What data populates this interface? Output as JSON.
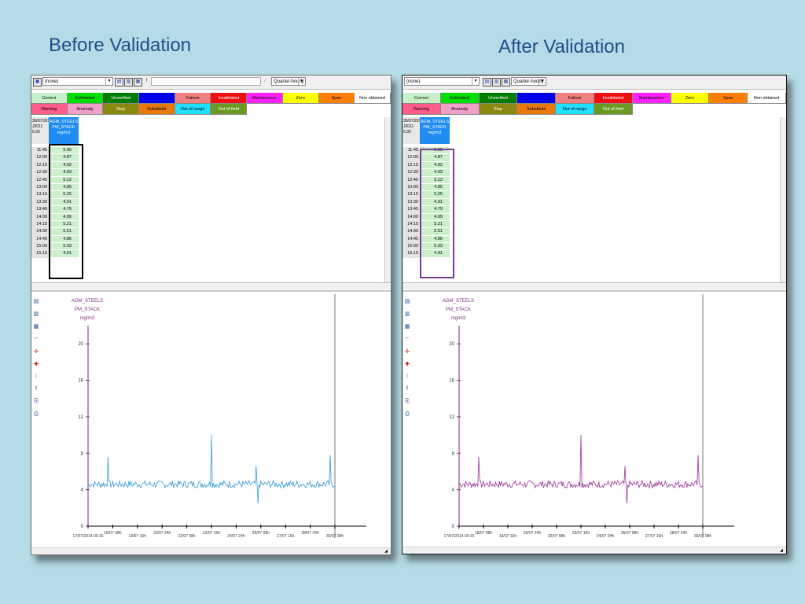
{
  "slide": {
    "title_left": "Before Validation",
    "title_right": "After Validation"
  },
  "window": {
    "station_select": "(none)",
    "period_select": "Quarter-hourly"
  },
  "legend": {
    "row1": [
      {
        "label": "Correct",
        "color": "#c8f0c8"
      },
      {
        "label": "Estimated",
        "color": "#00e000"
      },
      {
        "label": "Unverified",
        "color": "#007c00"
      },
      {
        "label": "",
        "color": "#0000e8"
      },
      {
        "label": "Failure",
        "color": "#f08080"
      },
      {
        "label": "Invalidated",
        "color": "#ee1010"
      },
      {
        "label": "Maintenance",
        "color": "#ff22ff"
      },
      {
        "label": "Zero",
        "color": "#ffff00"
      },
      {
        "label": "Span",
        "color": "#ff8000"
      },
      {
        "label": "Non obtained",
        "color": "#ffffff"
      }
    ],
    "row2": [
      {
        "label": "Warning",
        "color": "#ff5c8a"
      },
      {
        "label": "Anomaly",
        "color": "#f0a0c8"
      },
      {
        "label": "Stop",
        "color": "#8a8a10"
      },
      {
        "label": "Substitute",
        "color": "#e8780a"
      },
      {
        "label": "Out of range",
        "color": "#20e0ff"
      },
      {
        "label": "Out of field",
        "color": "#6a9a22"
      }
    ]
  },
  "grid": {
    "date_header": "30/07/2014 J2011 5:30",
    "column_header": [
      "AGM_STEELS",
      "PM_STACK",
      "mg/m3"
    ],
    "rows": [
      {
        "t": "11:45",
        "v": "5.00"
      },
      {
        "t": "12:00",
        "v": "4.87"
      },
      {
        "t": "12:15",
        "v": "4.92"
      },
      {
        "t": "12:30",
        "v": "4.93"
      },
      {
        "t": "12:45",
        "v": "5.12"
      },
      {
        "t": "13:00",
        "v": "4.85"
      },
      {
        "t": "13:15",
        "v": "5.25"
      },
      {
        "t": "13:30",
        "v": "4.91"
      },
      {
        "t": "13:45",
        "v": "4.79"
      },
      {
        "t": "14:00",
        "v": "4.99"
      },
      {
        "t": "14:15",
        "v": "5.21"
      },
      {
        "t": "14:30",
        "v": "5.51"
      },
      {
        "t": "14:45",
        "v": "4.86"
      },
      {
        "t": "15:00",
        "v": "5.03"
      },
      {
        "t": "15:15",
        "v": "4.91"
      }
    ]
  },
  "chart_data": [
    {
      "type": "line",
      "panel": "Before Validation",
      "title": "AGM_STEELS PM_STACK mg/m3",
      "series_color": "#3399dd",
      "ylim": [
        0,
        22
      ],
      "yticks": [
        "0",
        "4",
        "8",
        "12",
        "16",
        "20"
      ],
      "xticks": [
        "17/07/2014 00:15",
        "18/07 08h",
        "19/07 16h",
        "20/07 24h",
        "22/07 08h",
        "23/07 16h",
        "24/07 24h",
        "26/07 08h",
        "27/07 16h",
        "28/07 24h",
        "30/07 08h"
      ],
      "baseline": 4.6,
      "spikes": [
        {
          "x": 0.8,
          "y": 7.6
        },
        {
          "x": 5.0,
          "y": 10.0
        },
        {
          "x": 6.8,
          "y": 6.6
        },
        {
          "x": 6.9,
          "y": 2.5
        },
        {
          "x": 9.8,
          "y": 7.8
        }
      ]
    },
    {
      "type": "line",
      "panel": "After Validation",
      "title": "AGM_STEELS PM_STACK mg/m3",
      "series_color": "#993399",
      "ylim": [
        0,
        22
      ],
      "yticks": [
        "0",
        "4",
        "8",
        "12",
        "16",
        "20"
      ],
      "xticks": [
        "17/07/2014 00:15",
        "18/07 08h",
        "19/07 16h",
        "20/07 24h",
        "22/07 08h",
        "23/07 16h",
        "24/07 24h",
        "26/07 08h",
        "27/07 16h",
        "28/07 24h",
        "30/07 08h"
      ],
      "baseline": 4.6,
      "spikes": [
        {
          "x": 0.8,
          "y": 7.6
        },
        {
          "x": 5.0,
          "y": 10.0
        },
        {
          "x": 6.8,
          "y": 6.6
        },
        {
          "x": 6.9,
          "y": 2.5
        },
        {
          "x": 9.8,
          "y": 7.8
        }
      ]
    }
  ]
}
